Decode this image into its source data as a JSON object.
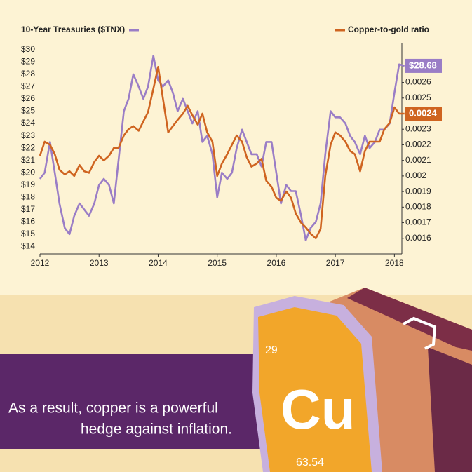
{
  "chart_data": {
    "type": "line",
    "x": [
      2012.0,
      2012.08,
      2012.17,
      2012.25,
      2012.33,
      2012.42,
      2012.5,
      2012.58,
      2012.67,
      2012.75,
      2012.83,
      2012.92,
      2013.0,
      2013.08,
      2013.17,
      2013.25,
      2013.33,
      2013.42,
      2013.5,
      2013.58,
      2013.67,
      2013.75,
      2013.83,
      2013.92,
      2014.0,
      2014.08,
      2014.17,
      2014.25,
      2014.33,
      2014.42,
      2014.5,
      2014.58,
      2014.67,
      2014.75,
      2014.83,
      2014.92,
      2015.0,
      2015.08,
      2015.17,
      2015.25,
      2015.33,
      2015.42,
      2015.5,
      2015.58,
      2015.67,
      2015.75,
      2015.83,
      2015.92,
      2016.0,
      2016.08,
      2016.17,
      2016.25,
      2016.33,
      2016.42,
      2016.5,
      2016.58,
      2016.67,
      2016.75,
      2016.83,
      2016.92,
      2017.0,
      2017.08,
      2017.17,
      2017.25,
      2017.33,
      2017.42,
      2017.5,
      2017.58,
      2017.67,
      2017.75,
      2017.83,
      2017.92,
      2018.0,
      2018.08,
      2018.17
    ],
    "series": [
      {
        "name": "10-Year Treasuries ($TNX)",
        "color": "#9a7dc6",
        "end_label": "$28.68",
        "values": [
          19.5,
          20,
          22.5,
          20,
          17.5,
          15.5,
          15,
          16.5,
          17.5,
          17,
          16.5,
          17.5,
          19,
          19.5,
          19,
          17.5,
          21,
          25,
          26,
          28,
          27,
          26,
          27,
          29.5,
          27.5,
          27,
          27.5,
          26.5,
          25,
          26,
          25,
          24,
          25,
          22.5,
          23,
          21.5,
          18,
          20,
          19.5,
          20,
          22,
          23.5,
          22.5,
          21.5,
          21.5,
          20.5,
          22.5,
          22.5,
          20,
          17.5,
          19,
          18.5,
          18.5,
          16.5,
          14.5,
          15.5,
          16,
          17.5,
          21.5,
          25,
          24.5,
          24.5,
          24,
          23,
          22.5,
          21.5,
          23,
          22,
          22.5,
          23.5,
          23.5,
          24,
          26.5,
          28.8,
          28.68
        ]
      },
      {
        "name": "Copper-to-gold ratio",
        "color": "#cf6420",
        "axis": "y2",
        "end_label": "0.0024",
        "values": [
          0.00213,
          0.00222,
          0.0022,
          0.00214,
          0.00204,
          0.00201,
          0.00203,
          0.002,
          0.00207,
          0.00203,
          0.00202,
          0.00209,
          0.00213,
          0.0021,
          0.00213,
          0.00218,
          0.00218,
          0.00226,
          0.0023,
          0.00232,
          0.00229,
          0.00235,
          0.00241,
          0.00256,
          0.0027,
          0.0025,
          0.00228,
          0.00232,
          0.00236,
          0.0024,
          0.00245,
          0.00239,
          0.00233,
          0.0024,
          0.00228,
          0.00222,
          0.002,
          0.00208,
          0.00214,
          0.0022,
          0.00226,
          0.00222,
          0.00212,
          0.00206,
          0.00208,
          0.00211,
          0.00197,
          0.00193,
          0.00186,
          0.00184,
          0.0019,
          0.00186,
          0.00176,
          0.0017,
          0.00167,
          0.00163,
          0.0016,
          0.00166,
          0.002,
          0.0022,
          0.00228,
          0.00226,
          0.00222,
          0.00216,
          0.00214,
          0.00203,
          0.00216,
          0.00222,
          0.00222,
          0.00222,
          0.0023,
          0.00234,
          0.00244,
          0.0024,
          0.0024
        ]
      }
    ],
    "xlim": [
      2012,
      2018.15
    ],
    "xticks": [
      2012,
      2013,
      2014,
      2015,
      2016,
      2017,
      2018
    ],
    "ylim": [
      13.4,
      30.5
    ],
    "yticks": [
      {
        "value": 14,
        "label": "$14"
      },
      {
        "value": 15,
        "label": "$15"
      },
      {
        "value": 16,
        "label": "$16"
      },
      {
        "value": 17,
        "label": "$17"
      },
      {
        "value": 18,
        "label": "$18"
      },
      {
        "value": 19,
        "label": "$19"
      },
      {
        "value": 20,
        "label": "$20"
      },
      {
        "value": 21,
        "label": "$21"
      },
      {
        "value": 22,
        "label": "$22"
      },
      {
        "value": 23,
        "label": "$23"
      },
      {
        "value": 24,
        "label": "$24"
      },
      {
        "value": 25,
        "label": "$25"
      },
      {
        "value": 26,
        "label": "$26"
      },
      {
        "value": 27,
        "label": "$27"
      },
      {
        "value": 28,
        "label": "$28"
      },
      {
        "value": 29,
        "label": "$29"
      },
      {
        "value": 30,
        "label": "$30"
      }
    ],
    "y2lim": [
      0.0015,
      0.00285
    ],
    "y2ticks": [
      0.0016,
      0.0017,
      0.0018,
      0.0019,
      0.002,
      0.0021,
      0.0022,
      0.0023,
      0.0025,
      0.0026
    ],
    "grid": false
  },
  "caption": {
    "line1": "As a result, copper is a powerful",
    "line2": "hedge against inflation."
  },
  "element": {
    "number": "29",
    "symbol": "Cu",
    "mass": "63.54"
  }
}
